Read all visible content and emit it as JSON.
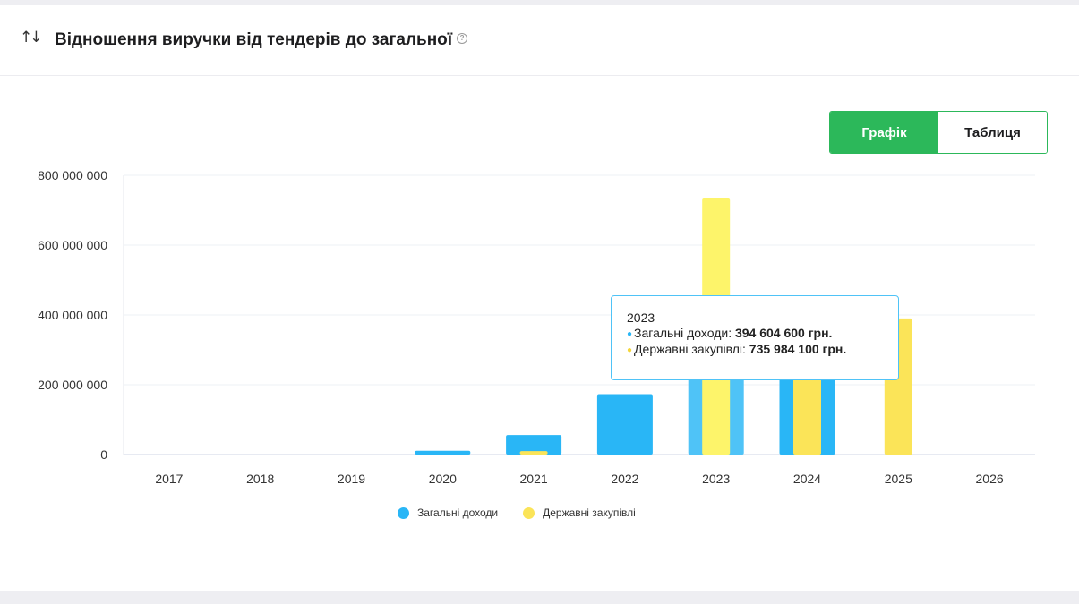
{
  "header": {
    "title": "Відношення виручки від тендерів до загальної",
    "help_icon": "question-circle-icon",
    "sort_icon": "sort-arrows-icon"
  },
  "view_toggle": {
    "chart_label": "Графік",
    "table_label": "Таблиця",
    "active": "chart"
  },
  "colors": {
    "total": "#29b6f6",
    "gov": "#fbe458",
    "accent": "#2cb85a"
  },
  "tooltip": {
    "year": "2023",
    "total_label": "Загальні доходи",
    "total_value": "394 604 600 грн.",
    "gov_label": "Державні закупівлі",
    "gov_value": "735 984 100 грн."
  },
  "chart_data": {
    "type": "bar",
    "categories": [
      "2017",
      "2018",
      "2019",
      "2020",
      "2021",
      "2022",
      "2023",
      "2024",
      "2025",
      "2026"
    ],
    "series": [
      {
        "name": "Загальні доходи",
        "values": [
          0,
          0,
          0,
          11000000,
          56000000,
          173000000,
          394604600,
          260000000,
          0,
          0
        ]
      },
      {
        "name": "Державні закупівлі",
        "values": [
          0,
          0,
          0,
          0,
          10000000,
          0,
          735984100,
          260000000,
          390000000,
          0
        ]
      }
    ],
    "ylim": [
      0,
      800000000
    ],
    "yticks": [
      "0",
      "200 000 000",
      "400 000 000",
      "600 000 000",
      "800 000 000"
    ],
    "ytick_values": [
      0,
      200000000,
      400000000,
      600000000,
      800000000
    ],
    "grid": true,
    "legend": "bottom-center"
  }
}
